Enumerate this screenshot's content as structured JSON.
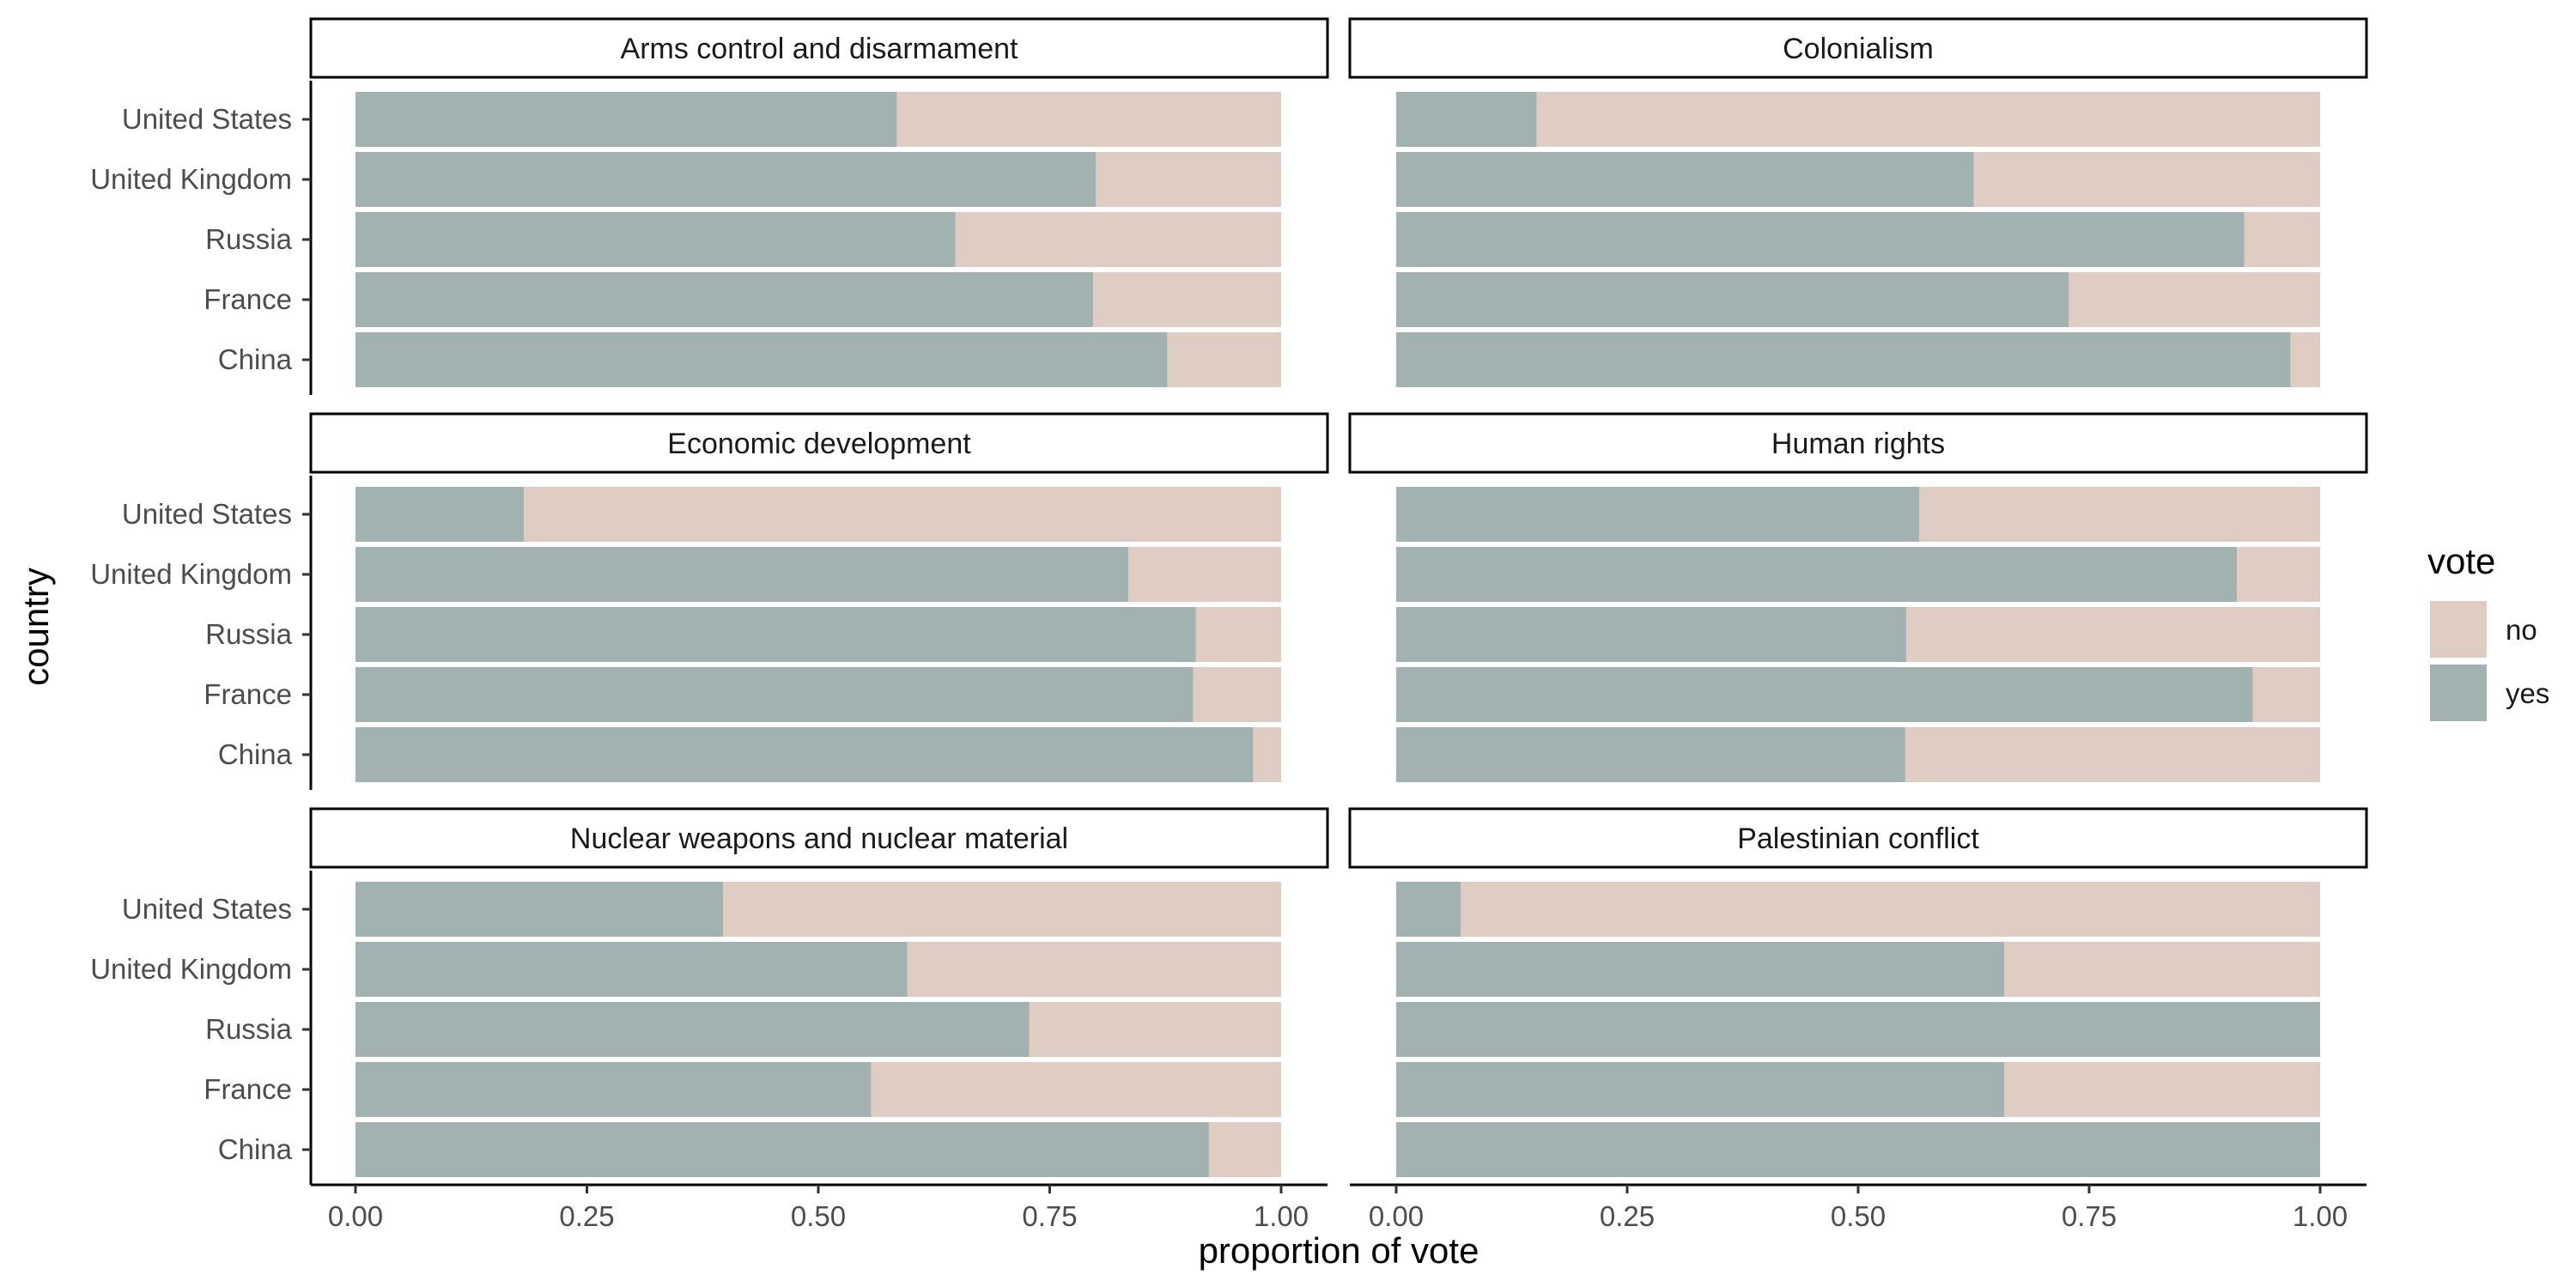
{
  "chart_data": {
    "type": "bar",
    "orientation": "horizontal",
    "stacked": true,
    "facet_variable": "issue",
    "categories": [
      "United States",
      "United Kingdom",
      "Russia",
      "France",
      "China"
    ],
    "xlabel": "proportion of vote",
    "ylabel": "country",
    "xlim": [
      0,
      1
    ],
    "x_ticks": [
      "0.00",
      "0.25",
      "0.50",
      "0.75",
      "1.00"
    ],
    "legend": {
      "title": "vote",
      "position": "right",
      "items": [
        {
          "label": "no",
          "color": "#dfcdc3"
        },
        {
          "label": "yes",
          "color": "#a1b2b1"
        }
      ]
    },
    "grid": false,
    "facets": [
      {
        "title": "Arms control and disarmament",
        "series": [
          {
            "name": "yes",
            "values": [
              0.585,
              0.8,
              0.648,
              0.797,
              0.877
            ]
          },
          {
            "name": "no",
            "values": [
              0.415,
              0.2,
              0.352,
              0.203,
              0.123
            ]
          }
        ]
      },
      {
        "title": "Colonialism",
        "series": [
          {
            "name": "yes",
            "values": [
              0.152,
              0.625,
              0.918,
              0.728,
              0.968
            ]
          },
          {
            "name": "no",
            "values": [
              0.848,
              0.375,
              0.082,
              0.272,
              0.032
            ]
          }
        ]
      },
      {
        "title": "Economic development",
        "series": [
          {
            "name": "yes",
            "values": [
              0.182,
              0.835,
              0.908,
              0.905,
              0.97
            ]
          },
          {
            "name": "no",
            "values": [
              0.818,
              0.165,
              0.092,
              0.095,
              0.03
            ]
          }
        ]
      },
      {
        "title": "Human rights",
        "series": [
          {
            "name": "yes",
            "values": [
              0.566,
              0.91,
              0.552,
              0.927,
              0.551
            ]
          },
          {
            "name": "no",
            "values": [
              0.434,
              0.09,
              0.448,
              0.073,
              0.449
            ]
          }
        ]
      },
      {
        "title": "Nuclear weapons and nuclear material",
        "series": [
          {
            "name": "yes",
            "values": [
              0.397,
              0.596,
              0.728,
              0.557,
              0.922
            ]
          },
          {
            "name": "no",
            "values": [
              0.603,
              0.404,
              0.272,
              0.443,
              0.078
            ]
          }
        ]
      },
      {
        "title": "Palestinian conflict",
        "series": [
          {
            "name": "yes",
            "values": [
              0.07,
              0.658,
              1.0,
              0.658,
              1.0
            ]
          },
          {
            "name": "no",
            "values": [
              0.93,
              0.342,
              0.0,
              0.342,
              0.0
            ]
          }
        ]
      }
    ]
  }
}
